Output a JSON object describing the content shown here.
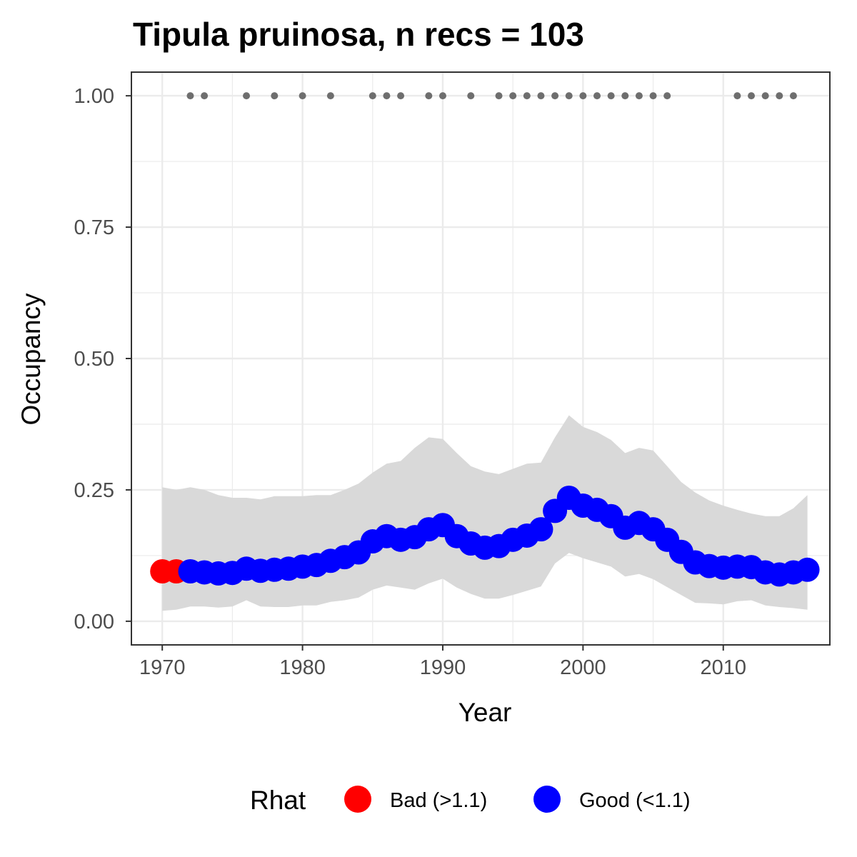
{
  "chart_data": {
    "type": "line",
    "title": "Tipula pruinosa, n recs = 103",
    "xlabel": "Year",
    "ylabel": "Occupancy",
    "xlim": [
      1967.8,
      2017.6
    ],
    "ylim": [
      -0.045,
      1.045
    ],
    "x_ticks": [
      1970,
      1980,
      1990,
      2000,
      2010
    ],
    "x_tick_labels": [
      "1970",
      "1980",
      "1990",
      "2000",
      "2010"
    ],
    "y_ticks": [
      0,
      0.25,
      0.5,
      0.75,
      1.0
    ],
    "y_tick_labels": [
      "0.00",
      "0.25",
      "0.50",
      "0.75",
      "1.00"
    ],
    "grid": true,
    "legend": {
      "title": "Rhat",
      "position": "bottom",
      "entries": [
        {
          "label": "Bad (>1.1)",
          "color": "#ff0000"
        },
        {
          "label": "Good (<1.1)",
          "color": "#0000ff"
        }
      ]
    },
    "series": [
      {
        "name": "Occupancy",
        "x": [
          1970,
          1971,
          1972,
          1973,
          1974,
          1975,
          1976,
          1977,
          1978,
          1979,
          1980,
          1981,
          1982,
          1983,
          1984,
          1985,
          1986,
          1987,
          1988,
          1989,
          1990,
          1991,
          1992,
          1993,
          1994,
          1995,
          1996,
          1997,
          1998,
          1999,
          2000,
          2001,
          2002,
          2003,
          2004,
          2005,
          2006,
          2007,
          2008,
          2009,
          2010,
          2011,
          2012,
          2013,
          2014,
          2015,
          2016
        ],
        "y": [
          0.095,
          0.095,
          0.095,
          0.093,
          0.091,
          0.092,
          0.1,
          0.096,
          0.098,
          0.1,
          0.104,
          0.107,
          0.115,
          0.122,
          0.131,
          0.152,
          0.162,
          0.155,
          0.16,
          0.175,
          0.183,
          0.162,
          0.148,
          0.14,
          0.143,
          0.155,
          0.163,
          0.175,
          0.21,
          0.235,
          0.22,
          0.212,
          0.2,
          0.178,
          0.187,
          0.175,
          0.155,
          0.132,
          0.112,
          0.105,
          0.102,
          0.104,
          0.103,
          0.093,
          0.089,
          0.093,
          0.098
        ],
        "lower": [
          0.02,
          0.022,
          0.028,
          0.028,
          0.026,
          0.028,
          0.04,
          0.028,
          0.027,
          0.027,
          0.03,
          0.03,
          0.037,
          0.04,
          0.045,
          0.06,
          0.068,
          0.064,
          0.06,
          0.072,
          0.081,
          0.064,
          0.052,
          0.043,
          0.043,
          0.05,
          0.058,
          0.066,
          0.11,
          0.13,
          0.12,
          0.112,
          0.104,
          0.085,
          0.09,
          0.08,
          0.065,
          0.05,
          0.035,
          0.034,
          0.032,
          0.038,
          0.04,
          0.03,
          0.027,
          0.025,
          0.022
        ],
        "upper": [
          0.255,
          0.25,
          0.255,
          0.25,
          0.24,
          0.235,
          0.235,
          0.232,
          0.238,
          0.238,
          0.238,
          0.24,
          0.24,
          0.25,
          0.262,
          0.283,
          0.3,
          0.305,
          0.33,
          0.35,
          0.347,
          0.32,
          0.295,
          0.285,
          0.28,
          0.29,
          0.3,
          0.302,
          0.35,
          0.392,
          0.37,
          0.36,
          0.345,
          0.32,
          0.33,
          0.325,
          0.295,
          0.265,
          0.245,
          0.23,
          0.22,
          0.212,
          0.205,
          0.2,
          0.2,
          0.215,
          0.24
        ],
        "rhat": [
          "bad",
          "bad",
          "good",
          "good",
          "good",
          "good",
          "good",
          "good",
          "good",
          "good",
          "good",
          "good",
          "good",
          "good",
          "good",
          "good",
          "good",
          "good",
          "good",
          "good",
          "good",
          "good",
          "good",
          "good",
          "good",
          "good",
          "good",
          "good",
          "good",
          "good",
          "good",
          "good",
          "good",
          "good",
          "good",
          "good",
          "good",
          "good",
          "good",
          "good",
          "good",
          "good",
          "good",
          "good",
          "good",
          "good",
          "good"
        ]
      }
    ],
    "records": {
      "y": 1.0,
      "x": [
        1972,
        1973,
        1976,
        1978,
        1980,
        1982,
        1985,
        1986,
        1987,
        1989,
        1990,
        1992,
        1994,
        1995,
        1996,
        1997,
        1998,
        1999,
        2000,
        2001,
        2002,
        2003,
        2004,
        2005,
        2006,
        2011,
        2012,
        2013,
        2014,
        2015
      ]
    },
    "colors": {
      "ribbon": "#d9d9d9",
      "record_points": "#6e6e6e",
      "panel_border": "#333333",
      "grid": "#ebebeb"
    }
  }
}
